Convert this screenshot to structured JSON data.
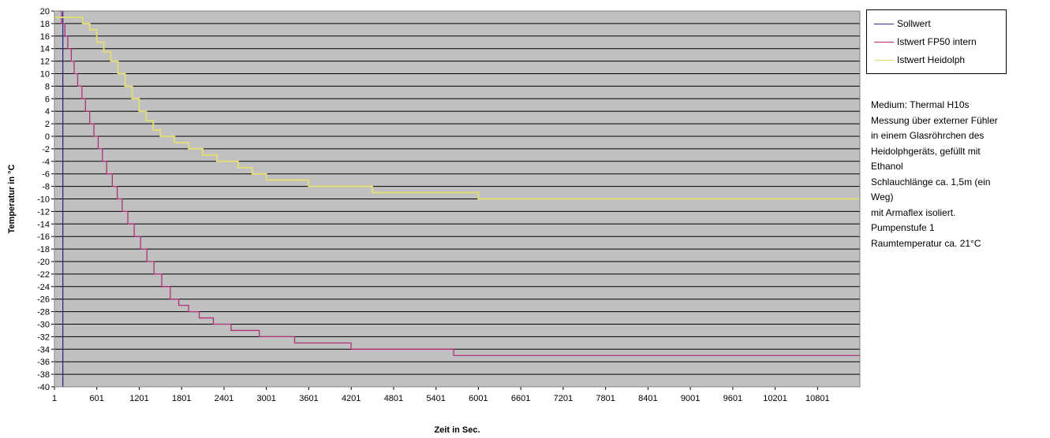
{
  "chart_data": {
    "type": "line",
    "xlabel": "Zeit in Sec.",
    "ylabel": "Temperatur in °C",
    "xlim": [
      1,
      11400
    ],
    "ylim": [
      -40,
      20
    ],
    "grid": true,
    "legend_position": "top-right",
    "plot_background": "#c0c0c0",
    "y_ticks": [
      20,
      18,
      16,
      14,
      12,
      10,
      8,
      6,
      4,
      2,
      0,
      -2,
      -4,
      -6,
      -8,
      -10,
      -12,
      -14,
      -16,
      -18,
      -20,
      -22,
      -24,
      -26,
      -28,
      -30,
      -32,
      -34,
      -36,
      -38,
      -40
    ],
    "x_ticks": [
      1,
      601,
      1201,
      1801,
      2401,
      3001,
      3601,
      4201,
      4801,
      5401,
      6001,
      6601,
      7201,
      7801,
      8401,
      9001,
      9601,
      10201,
      10801
    ],
    "series": [
      {
        "name": "Sollwert",
        "color": "#2b2b8f",
        "points": [
          [
            120,
            20
          ],
          [
            120,
            -40
          ]
        ]
      },
      {
        "name": "Istwert FP50 intern",
        "color": "#b0307a",
        "points": [
          [
            60,
            20
          ],
          [
            100,
            18
          ],
          [
            150,
            16
          ],
          [
            190,
            14
          ],
          [
            240,
            12
          ],
          [
            280,
            10
          ],
          [
            330,
            8
          ],
          [
            390,
            6
          ],
          [
            440,
            4
          ],
          [
            500,
            2
          ],
          [
            560,
            0
          ],
          [
            620,
            -2
          ],
          [
            680,
            -4
          ],
          [
            740,
            -6
          ],
          [
            820,
            -8
          ],
          [
            890,
            -10
          ],
          [
            960,
            -12
          ],
          [
            1040,
            -14
          ],
          [
            1130,
            -16
          ],
          [
            1220,
            -18
          ],
          [
            1310,
            -20
          ],
          [
            1410,
            -22
          ],
          [
            1520,
            -24
          ],
          [
            1640,
            -26
          ],
          [
            1760,
            -27
          ],
          [
            1900,
            -28
          ],
          [
            2050,
            -29
          ],
          [
            2250,
            -30
          ],
          [
            2500,
            -31
          ],
          [
            2900,
            -32
          ],
          [
            3400,
            -33
          ],
          [
            4200,
            -34
          ],
          [
            5650,
            -35
          ],
          [
            11400,
            -35
          ]
        ]
      },
      {
        "name": "Istwert Heidolph",
        "color": "#e2dc78",
        "points": [
          [
            1,
            19
          ],
          [
            300,
            19
          ],
          [
            400,
            18
          ],
          [
            500,
            17
          ],
          [
            600,
            15
          ],
          [
            700,
            13.5
          ],
          [
            800,
            12
          ],
          [
            900,
            10
          ],
          [
            1000,
            8
          ],
          [
            1100,
            6
          ],
          [
            1200,
            4
          ],
          [
            1300,
            2.5
          ],
          [
            1400,
            1
          ],
          [
            1500,
            0
          ],
          [
            1700,
            -1
          ],
          [
            1900,
            -2
          ],
          [
            2100,
            -3
          ],
          [
            2300,
            -4
          ],
          [
            2600,
            -5
          ],
          [
            2800,
            -6
          ],
          [
            3000,
            -7
          ],
          [
            3600,
            -8
          ],
          [
            4500,
            -9
          ],
          [
            6000,
            -10
          ],
          [
            11400,
            -10
          ]
        ]
      }
    ]
  },
  "notes": [
    "Medium: Thermal H10s",
    "Messung über externer Fühler",
    "in einem Glasröhrchen des",
    "Heidolphgeräts, gefüllt mit",
    "Ethanol",
    "Schlauchlänge ca. 1,5m (ein",
    "Weg)",
    "mit Armaflex isoliert.",
    "Pumpenstufe 1",
    "Raumtemperatur ca. 21°C"
  ]
}
